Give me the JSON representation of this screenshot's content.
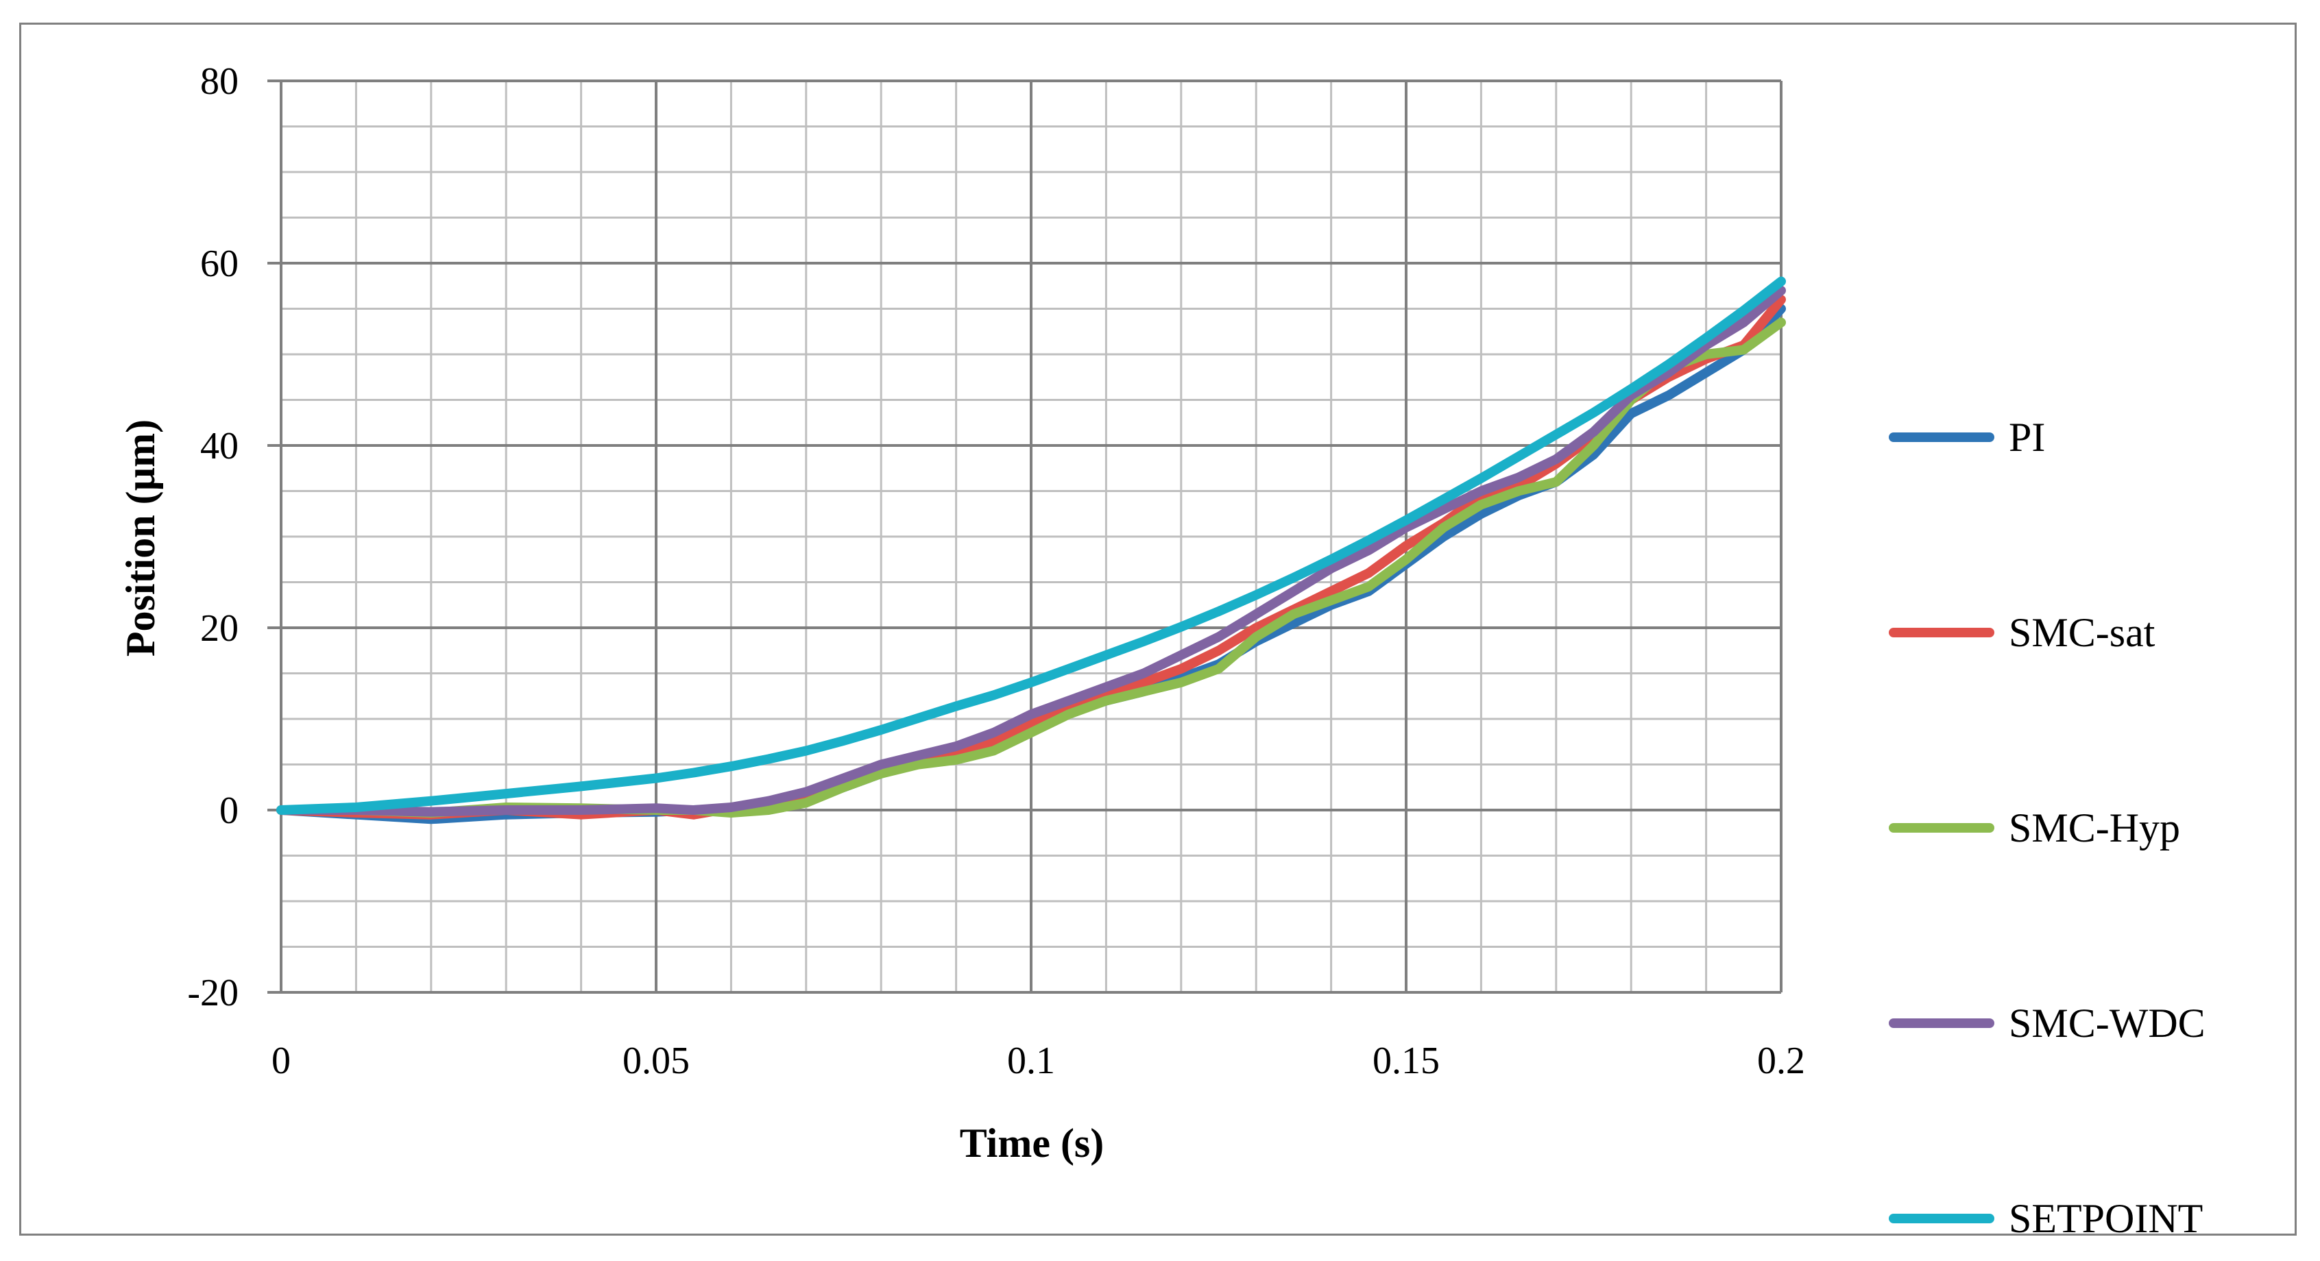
{
  "chart_data": {
    "type": "line",
    "title": "",
    "xlabel": "Time (s)",
    "ylabel": "Position (µm)",
    "xlim": [
      0,
      0.2
    ],
    "ylim": [
      -20,
      80
    ],
    "x_major_step": 0.05,
    "x_minor_step": 0.01,
    "y_major_step": 20,
    "y_minor_step": 5,
    "grid": true,
    "legend_position": "right",
    "x_tick_labels": [
      "0",
      "0.05",
      "0.1",
      "0.15",
      "0.2"
    ],
    "y_tick_labels": [
      "-20",
      "0",
      "20",
      "40",
      "60",
      "80"
    ],
    "series": [
      {
        "name": "PI",
        "color": "#2e75b6",
        "x": [
          0,
          0.01,
          0.02,
          0.03,
          0.04,
          0.05,
          0.055,
          0.06,
          0.065,
          0.07,
          0.075,
          0.08,
          0.085,
          0.09,
          0.095,
          0.1,
          0.105,
          0.11,
          0.115,
          0.12,
          0.125,
          0.13,
          0.135,
          0.14,
          0.145,
          0.15,
          0.155,
          0.16,
          0.165,
          0.17,
          0.175,
          0.18,
          0.185,
          0.19,
          0.195,
          0.2
        ],
        "y": [
          0,
          -0.5,
          -1,
          -0.5,
          -0.3,
          -0.2,
          0,
          0.2,
          0.5,
          1.2,
          2.5,
          4,
          5.2,
          6,
          7,
          8.6,
          10.6,
          12,
          13,
          14.5,
          16,
          18.5,
          20.5,
          22.5,
          24,
          27,
          30,
          32.5,
          34.5,
          36,
          39,
          43.5,
          45.5,
          48,
          50.5,
          55
        ]
      },
      {
        "name": "SMC-sat",
        "color": "#e0504a",
        "x": [
          0,
          0.01,
          0.02,
          0.03,
          0.04,
          0.05,
          0.055,
          0.06,
          0.065,
          0.07,
          0.075,
          0.08,
          0.085,
          0.09,
          0.095,
          0.1,
          0.105,
          0.11,
          0.115,
          0.12,
          0.125,
          0.13,
          0.135,
          0.14,
          0.145,
          0.15,
          0.155,
          0.16,
          0.165,
          0.17,
          0.175,
          0.18,
          0.185,
          0.19,
          0.195,
          0.2
        ],
        "y": [
          0,
          -0.3,
          -0.5,
          0,
          -0.5,
          0,
          -0.5,
          0.2,
          0.5,
          1.5,
          2.8,
          4.2,
          5.3,
          6.3,
          7.5,
          9.5,
          11,
          12.5,
          14,
          15.5,
          17.5,
          20,
          22,
          24,
          26,
          29,
          31.5,
          34.5,
          35.5,
          38,
          41,
          45,
          47.5,
          49.5,
          51,
          56
        ]
      },
      {
        "name": "SMC-Hyp",
        "color": "#8dbb4f",
        "x": [
          0,
          0.01,
          0.02,
          0.03,
          0.04,
          0.05,
          0.055,
          0.06,
          0.065,
          0.07,
          0.075,
          0.08,
          0.085,
          0.09,
          0.095,
          0.1,
          0.105,
          0.11,
          0.115,
          0.12,
          0.125,
          0.13,
          0.135,
          0.14,
          0.145,
          0.15,
          0.155,
          0.16,
          0.165,
          0.17,
          0.175,
          0.18,
          0.185,
          0.19,
          0.195,
          0.2
        ],
        "y": [
          0,
          0,
          -0.3,
          0.3,
          0.2,
          0,
          0,
          -0.3,
          0,
          0.8,
          2.5,
          4,
          5,
          5.5,
          6.5,
          8.5,
          10.5,
          12,
          13,
          14,
          15.5,
          19,
          21.5,
          23,
          24.5,
          27.5,
          31,
          33.5,
          35,
          36,
          40,
          45,
          48.5,
          50,
          50.5,
          53.5
        ]
      },
      {
        "name": "SMC-WDC",
        "color": "#8064a2",
        "x": [
          0,
          0.01,
          0.02,
          0.03,
          0.04,
          0.05,
          0.055,
          0.06,
          0.065,
          0.07,
          0.075,
          0.08,
          0.085,
          0.09,
          0.095,
          0.1,
          0.105,
          0.11,
          0.115,
          0.12,
          0.125,
          0.13,
          0.135,
          0.14,
          0.145,
          0.15,
          0.155,
          0.16,
          0.165,
          0.17,
          0.175,
          0.18,
          0.185,
          0.19,
          0.195,
          0.2
        ],
        "y": [
          0,
          0,
          -0.2,
          0,
          0,
          0.2,
          0,
          0.3,
          1,
          2,
          3.5,
          5,
          6,
          7,
          8.5,
          10.5,
          12,
          13.5,
          15,
          17,
          19,
          21.5,
          24,
          26.5,
          28.5,
          31,
          33,
          35,
          36.5,
          38.5,
          41.5,
          45.5,
          48,
          51,
          53.5,
          57
        ]
      },
      {
        "name": "SETPOINT",
        "color": "#1ab0c8",
        "x": [
          0,
          0.01,
          0.02,
          0.03,
          0.04,
          0.05,
          0.055,
          0.06,
          0.065,
          0.07,
          0.075,
          0.08,
          0.085,
          0.09,
          0.095,
          0.1,
          0.105,
          0.11,
          0.115,
          0.12,
          0.125,
          0.13,
          0.135,
          0.14,
          0.145,
          0.15,
          0.155,
          0.16,
          0.165,
          0.17,
          0.175,
          0.18,
          0.185,
          0.19,
          0.195,
          0.2
        ],
        "y": [
          0,
          0.3,
          1,
          1.8,
          2.6,
          3.5,
          4.1,
          4.8,
          5.6,
          6.5,
          7.6,
          8.8,
          10.1,
          11.4,
          12.6,
          14,
          15.5,
          17,
          18.5,
          20.1,
          21.8,
          23.6,
          25.5,
          27.5,
          29.6,
          31.8,
          34.1,
          36.4,
          38.8,
          41.2,
          43.6,
          46.2,
          48.9,
          51.8,
          54.8,
          58
        ]
      }
    ]
  }
}
